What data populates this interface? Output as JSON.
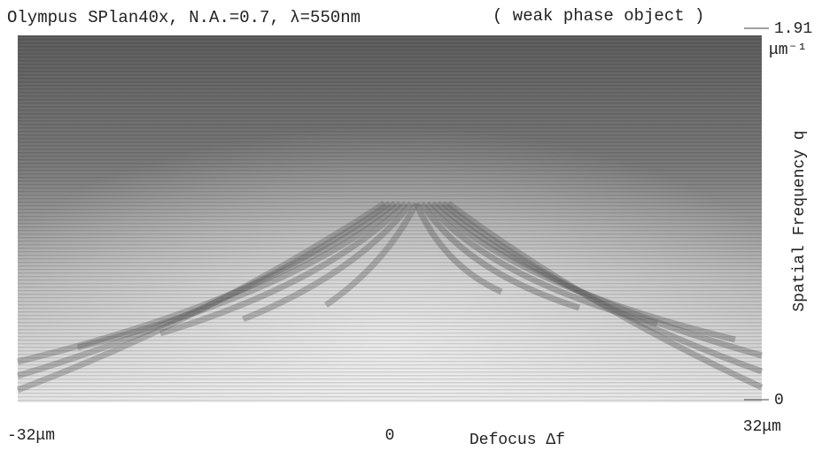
{
  "chart_data": {
    "type": "heatmap",
    "title": "Olympus SPlan40x, N.A.=0.7, λ=550nm",
    "subtitle": "( weak phase object )",
    "x_label": "Defocus Δf",
    "y_label": "Spatial Frequency q",
    "y_unit": "μm⁻¹",
    "xlim": [
      -32,
      32
    ],
    "xticks": [
      {
        "value": -32,
        "label": "-32μm"
      },
      0,
      {
        "value": 32,
        "label": "32μm"
      }
    ],
    "ylim": [
      0,
      1.91
    ],
    "yticks": [
      0,
      1.91
    ]
  }
}
